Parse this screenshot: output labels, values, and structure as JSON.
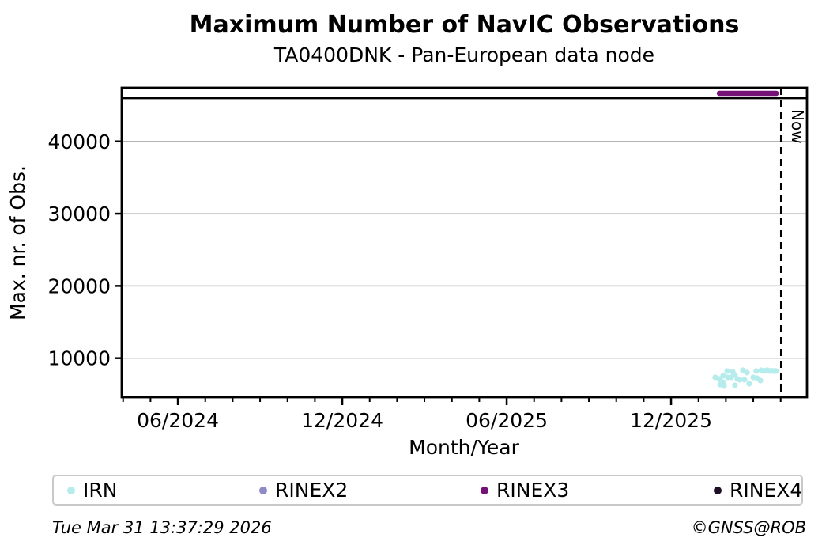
{
  "chart_data": {
    "type": "scatter",
    "title": "Maximum Number of NavIC Observations",
    "subtitle": "TA0400DNK - Pan-European data node",
    "xlabel": "Month/Year",
    "ylabel": "Max. nr. of Obs.",
    "x_axis": {
      "unit": "months since 2024-01",
      "min": 2.95,
      "max": 27.96,
      "major_ticks": [
        {
          "pos": 5,
          "label": "06/2024"
        },
        {
          "pos": 11,
          "label": "12/2024"
        },
        {
          "pos": 17,
          "label": "06/2025"
        },
        {
          "pos": 23,
          "label": "12/2025"
        }
      ],
      "minor_tick_every": 1
    },
    "y_axis": {
      "min": 4600,
      "max": 47420,
      "ticks": [
        10000,
        20000,
        30000,
        40000
      ]
    },
    "grid": "horizontal-only",
    "grid_color": "#b2b2b2",
    "now_marker": {
      "pos": 27.01,
      "label": "Now"
    },
    "max_obs_line": {
      "value": 46000,
      "color": "#000000"
    },
    "legend_position": "bottom",
    "series": [
      {
        "name": "IRN",
        "color": "#b6ecec",
        "style": "scatter",
        "points": [
          [
            24.61,
            7350
          ],
          [
            24.76,
            7120
          ],
          [
            24.79,
            6350
          ],
          [
            24.9,
            7560
          ],
          [
            24.9,
            6680
          ],
          [
            24.93,
            6140
          ],
          [
            25.05,
            8220
          ],
          [
            25.07,
            7340
          ],
          [
            25.19,
            7340
          ],
          [
            25.25,
            8110
          ],
          [
            25.33,
            7670
          ],
          [
            25.33,
            6250
          ],
          [
            25.42,
            7120
          ],
          [
            25.51,
            7010
          ],
          [
            25.62,
            8330
          ],
          [
            25.68,
            7010
          ],
          [
            25.77,
            8000
          ],
          [
            25.85,
            6460
          ],
          [
            26.0,
            7340
          ],
          [
            26.11,
            8220
          ],
          [
            26.14,
            7230
          ],
          [
            26.26,
            6900
          ],
          [
            26.29,
            8330
          ],
          [
            26.4,
            8220
          ],
          [
            26.47,
            8280
          ],
          [
            26.52,
            8330
          ],
          [
            26.58,
            8250
          ],
          [
            26.63,
            8220
          ],
          [
            26.69,
            8250
          ],
          [
            26.75,
            8220
          ],
          [
            26.8,
            8250
          ],
          [
            26.83,
            8220
          ]
        ]
      },
      {
        "name": "RINEX2",
        "color": "#8d8ac5",
        "style": "scatter",
        "points": []
      },
      {
        "name": "RINEX3",
        "color": "#751177",
        "style": "line",
        "points": [
          [
            24.76,
            46650
          ],
          [
            26.84,
            46650
          ]
        ]
      },
      {
        "name": "RINEX4",
        "color": "#201026",
        "style": "scatter",
        "points": []
      }
    ]
  },
  "legend": {
    "items": [
      {
        "label": "IRN",
        "color": "#b6ecec"
      },
      {
        "label": "RINEX2",
        "color": "#8d8ac5"
      },
      {
        "label": "RINEX3",
        "color": "#751177"
      },
      {
        "label": "RINEX4",
        "color": "#201026"
      }
    ]
  },
  "footer": {
    "timestamp": "Tue Mar 31 13:37:29 2026",
    "copyright": "©GNSS@ROB"
  }
}
